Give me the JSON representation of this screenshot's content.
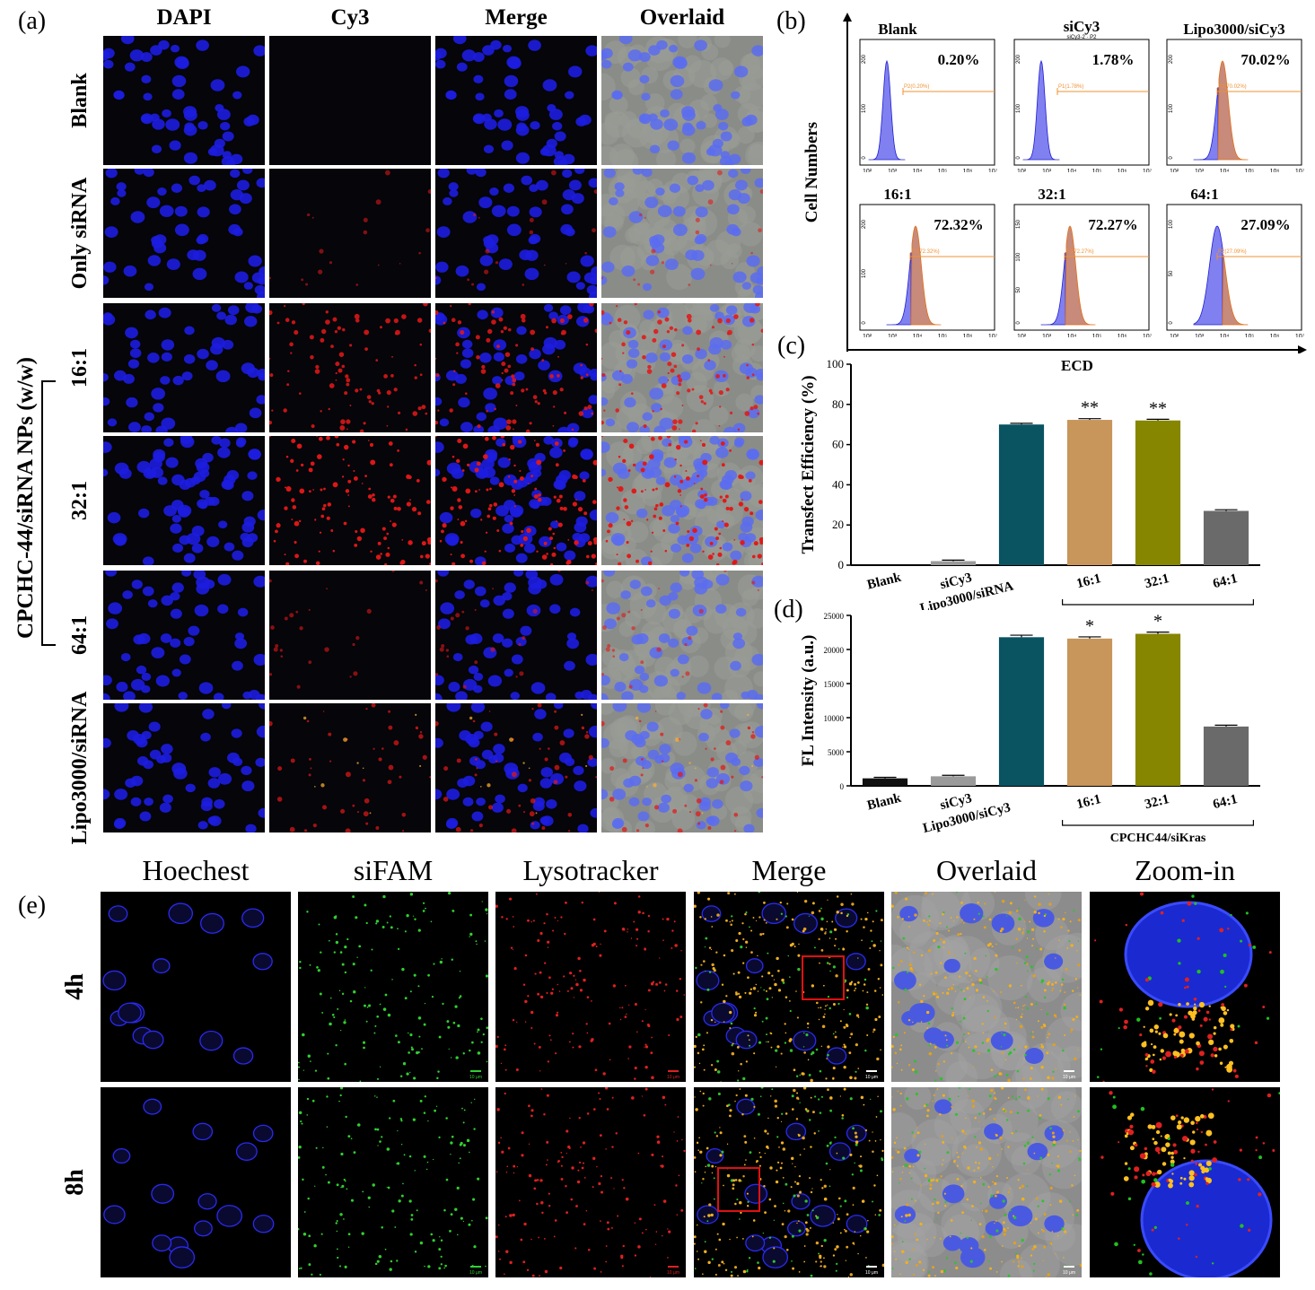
{
  "panel_letters": {
    "a": "(a)",
    "b": "(b)",
    "c": "(c)",
    "d": "(d)",
    "e": "(e)"
  },
  "panel_a": {
    "columns": [
      "DAPI",
      "Cy3",
      "Merge",
      "Overlaid"
    ],
    "rows": [
      "Blank",
      "Only siRNA",
      "16:1",
      "32:1",
      "64:1",
      "Lipo3000/siRNA"
    ],
    "group_label": "CPCHC-44/siRNA NPs (w/w)",
    "red_intensity": [
      0,
      0.15,
      0.75,
      0.95,
      0.2,
      0.45
    ]
  },
  "panel_b": {
    "y_label": "Cell Numbers",
    "x_label": "ECD",
    "plots": [
      {
        "title": "Blank",
        "subtitle": "",
        "pct": "0.20%",
        "gate": "P2(0.20%)",
        "y_ticks": [
          "0",
          "100",
          "200"
        ],
        "x_ticks": [
          "10²",
          "10³",
          "10⁴",
          "10⁵",
          "10⁶",
          "10⁷"
        ],
        "positive": false
      },
      {
        "title": "siCy3",
        "subtitle": "siCy3-2 · P2",
        "pct": "1.78%",
        "gate": "P1(1.78%)",
        "y_ticks": [
          "0",
          "100",
          "200"
        ],
        "x_ticks": [
          "10²",
          "10³",
          "10⁴",
          "10⁵",
          "10⁶",
          "10⁷"
        ],
        "positive": false
      },
      {
        "title": "Lipo3000/siCy3",
        "subtitle": "",
        "pct": "70.02%",
        "gate": "P2(70.02%)",
        "y_ticks": [
          "0",
          "100",
          "200"
        ],
        "x_ticks": [
          "10²",
          "10³",
          "10⁴",
          "10⁵",
          "10⁶",
          "10⁷"
        ],
        "positive": true
      },
      {
        "title": "16:1",
        "subtitle": "",
        "pct": "72.32%",
        "gate": "P2(72.32%)",
        "y_ticks": [
          "0",
          "100",
          "200"
        ],
        "x_ticks": [
          "10²",
          "10³",
          "10⁴",
          "10⁵",
          "10⁶",
          "10⁷"
        ],
        "positive": true
      },
      {
        "title": "32:1",
        "subtitle": "",
        "pct": "72.27%",
        "gate": "P2(72.27%)",
        "y_ticks": [
          "0",
          "50",
          "100",
          "150"
        ],
        "x_ticks": [
          "10²",
          "10³",
          "10⁴",
          "10⁵",
          "10⁶",
          "10⁷"
        ],
        "positive": true
      },
      {
        "title": "64:1",
        "subtitle": "",
        "pct": "27.09%",
        "gate": "P2(27.09%)",
        "y_ticks": [
          "0",
          "50",
          "100"
        ],
        "x_ticks": [
          "10²",
          "10³",
          "10⁴",
          "10⁵",
          "10⁶",
          "10⁷"
        ],
        "positive": true
      }
    ]
  },
  "chart_data": [
    {
      "type": "bar",
      "ylabel": "Transfect Efficiency (%)",
      "xlabel": "",
      "ylim": [
        0,
        100
      ],
      "yticks": [
        0,
        20,
        40,
        60,
        80,
        100
      ],
      "categories": [
        "Blank",
        "siCy3",
        "Lipo3000/siRNA",
        "16:1",
        "32:1",
        "64:1"
      ],
      "values": [
        0,
        2,
        70,
        72.3,
        72,
        27
      ],
      "errors": [
        0,
        0.5,
        0.6,
        0.6,
        0.6,
        0.6
      ],
      "colors": [
        "#111111",
        "#9a9a9a",
        "#0a5462",
        "#c8955a",
        "#868600",
        "#6a6a6a"
      ],
      "significance": [
        "",
        "",
        "",
        "**",
        "**",
        ""
      ],
      "group_bracket": ""
    },
    {
      "type": "bar",
      "ylabel": "FL Intensity (a.u.)",
      "xlabel": "",
      "ylim": [
        0,
        25000
      ],
      "yticks": [
        0,
        5000,
        10000,
        15000,
        20000,
        25000
      ],
      "categories": [
        "Blank",
        "siCy3",
        "Lipo3000/siCy3",
        "16:1",
        "32:1",
        "64:1"
      ],
      "values": [
        1100,
        1400,
        21800,
        21600,
        22300,
        8700
      ],
      "errors": [
        150,
        150,
        300,
        250,
        250,
        200
      ],
      "colors": [
        "#111111",
        "#9a9a9a",
        "#0a5462",
        "#c8955a",
        "#868600",
        "#6a6a6a"
      ],
      "significance": [
        "",
        "",
        "",
        "*",
        "*",
        ""
      ],
      "group_bracket": "CPCHC44/siKras"
    }
  ],
  "panel_e": {
    "columns": [
      "Hoechest",
      "siFAM",
      "Lysotracker",
      "Merge",
      "Overlaid",
      "Zoom-in"
    ],
    "rows": [
      "4h",
      "8h"
    ],
    "scale": "10 μm"
  }
}
